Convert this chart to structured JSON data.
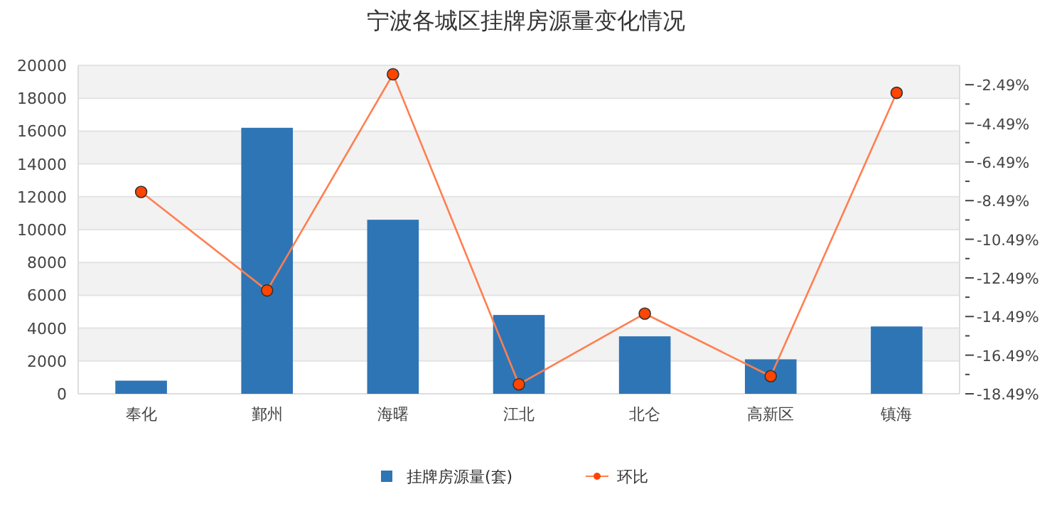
{
  "chart_data": {
    "type": "bar",
    "title": "宁波各城区挂牌房源量变化情况",
    "categories": [
      "奉化",
      "鄞州",
      "海曙",
      "江北",
      "北仑",
      "高新区",
      "镇海"
    ],
    "series": [
      {
        "name": "挂牌房源量(套)",
        "color": "#2e75b6",
        "values": [
          800,
          16200,
          10600,
          4800,
          3500,
          2100,
          4100
        ]
      },
      {
        "name": "环比",
        "type": "line",
        "axis": "y2",
        "color": "#ff7f50",
        "marker": "circle",
        "values": [
          -8.04,
          -13.14,
          -1.95,
          -18.0,
          -14.34,
          -17.58,
          -2.91
        ]
      }
    ],
    "ylim": [
      0,
      20000
    ],
    "yticks": [
      0,
      2000,
      4000,
      6000,
      8000,
      10000,
      12000,
      14000,
      16000,
      18000,
      20000
    ],
    "y2lim": [
      -18.49,
      -1.49
    ],
    "y2ticks": [
      {
        "value": -18.49,
        "label": "-18.49%"
      },
      {
        "value": -17.49,
        "label": null
      },
      {
        "value": -16.49,
        "label": "-16.49%"
      },
      {
        "value": -15.49,
        "label": null
      },
      {
        "value": -14.49,
        "label": "-14.49%"
      },
      {
        "value": -13.49,
        "label": null
      },
      {
        "value": -12.49,
        "label": "-12.49%"
      },
      {
        "value": -11.49,
        "label": null
      },
      {
        "value": -10.49,
        "label": "-10.49%"
      },
      {
        "value": -9.49,
        "label": null
      },
      {
        "value": -8.49,
        "label": "-8.49%"
      },
      {
        "value": -7.49,
        "label": null
      },
      {
        "value": -6.49,
        "label": "-6.49%"
      },
      {
        "value": -5.49,
        "label": null
      },
      {
        "value": -4.49,
        "label": "-4.49%"
      },
      {
        "value": -3.49,
        "label": null
      },
      {
        "value": -2.49,
        "label": "-2.49%"
      }
    ],
    "grid": "y",
    "legend": "bottom"
  }
}
